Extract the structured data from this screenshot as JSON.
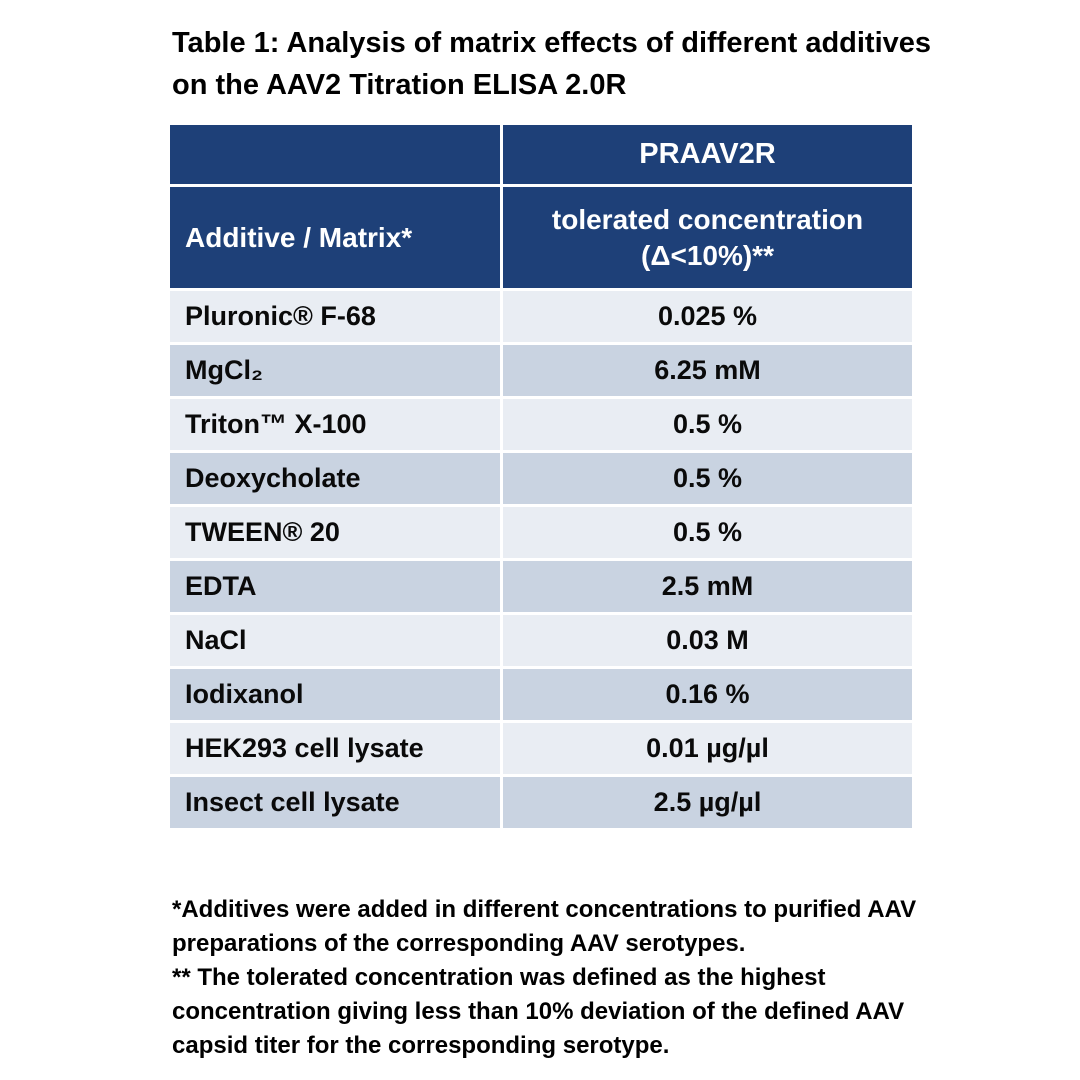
{
  "title": "Table 1: Analysis of matrix effects of different additives on the AAV2 Titration ELISA 2.0R",
  "table": {
    "top_header": "PRAAV2R",
    "left_header": "Additive / Matrix*",
    "right_header_line1": "tolerated concentration",
    "right_header_line2": "(Δ<10%)**",
    "rows": [
      {
        "additive": "Pluronic® F-68",
        "value": "0.025 %"
      },
      {
        "additive": "MgCl₂",
        "value": "6.25 mM"
      },
      {
        "additive": "Triton™ X-100",
        "value": "0.5 %"
      },
      {
        "additive": "Deoxycholate",
        "value": "0.5 %"
      },
      {
        "additive": "TWEEN® 20",
        "value": "0.5 %"
      },
      {
        "additive": "EDTA",
        "value": "2.5 mM"
      },
      {
        "additive": "NaCl",
        "value": "0.03 M"
      },
      {
        "additive": "Iodixanol",
        "value": "0.16 %"
      },
      {
        "additive": "HEK293 cell lysate",
        "value": "0.01 µg/µl"
      },
      {
        "additive": "Insect cell lysate",
        "value": "2.5 µg/µl"
      }
    ]
  },
  "footnotes": [
    "*Additives were added in different concentrations to purified AAV preparations of the corresponding AAV serotypes.",
    "** The tolerated concentration was defined as the highest concentration giving less than 10% deviation of the defined AAV capsid titer for the corresponding serotype."
  ],
  "colors": {
    "header_navy": "#1e4078",
    "row_light": "#e9edf3",
    "row_dark": "#c9d3e1"
  }
}
